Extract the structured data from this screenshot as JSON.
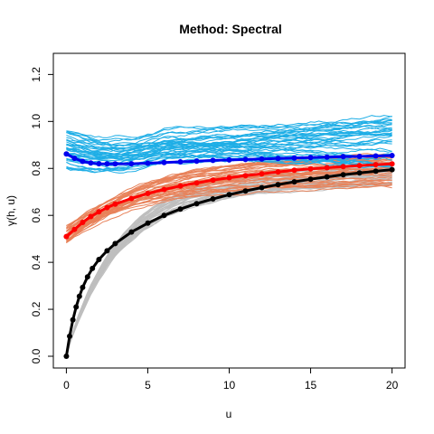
{
  "chart_data": {
    "type": "line",
    "title": "Method: Spectral",
    "xlabel": "u",
    "ylabel": "γ(h, u)",
    "xlim": [
      -0.8,
      20.8
    ],
    "ylim": [
      -0.05,
      1.29
    ],
    "x_ticks": [
      0,
      5,
      10,
      15,
      20
    ],
    "y_ticks": [
      0.0,
      0.2,
      0.4,
      0.6,
      0.8,
      1.0,
      1.2
    ],
    "grid": false,
    "legend": "none",
    "colors": {
      "blue_bundle": "#1EAEE6",
      "orange_bundle": "#E8825A",
      "gray_bundle": "#BEBEBE",
      "blue_mean": "#0000EE",
      "red_mean": "#FF0000",
      "black_mean": "#000000"
    },
    "bundles": [
      {
        "color_key": "blue_bundle",
        "count": 40,
        "start_range": [
          0.8,
          0.97
        ],
        "end_range": [
          0.8,
          1.02
        ],
        "dip": 0.04,
        "noise": 0.012
      },
      {
        "color_key": "orange_bundle",
        "count": 35,
        "start_range": [
          0.48,
          0.56
        ],
        "end_range": [
          0.72,
          0.86
        ],
        "noise": 0.008
      },
      {
        "color_key": "gray_bundle",
        "count": 35,
        "start_range": [
          0.0,
          0.0
        ],
        "end_range": [
          0.73,
          0.82
        ],
        "noise": 0.008
      }
    ],
    "series": [
      {
        "color_key": "blue_mean",
        "x": [
          0,
          0.5,
          1,
          1.5,
          2,
          2.5,
          3,
          4,
          5,
          6,
          7,
          8,
          9,
          10,
          11,
          12,
          13,
          14,
          15,
          16,
          17,
          18,
          19,
          20
        ],
        "y": [
          0.862,
          0.843,
          0.83,
          0.823,
          0.82,
          0.819,
          0.819,
          0.82,
          0.822,
          0.825,
          0.828,
          0.831,
          0.834,
          0.836,
          0.838,
          0.84,
          0.842,
          0.844,
          0.846,
          0.848,
          0.85,
          0.851,
          0.853,
          0.855
        ]
      },
      {
        "color_key": "red_mean",
        "x": [
          0,
          0.5,
          1,
          1.5,
          2,
          2.5,
          3,
          4,
          5,
          6,
          7,
          8,
          9,
          10,
          11,
          12,
          13,
          14,
          15,
          16,
          17,
          18,
          19,
          20
        ],
        "y": [
          0.51,
          0.54,
          0.57,
          0.595,
          0.615,
          0.633,
          0.648,
          0.672,
          0.693,
          0.71,
          0.725,
          0.738,
          0.75,
          0.76,
          0.769,
          0.777,
          0.785,
          0.792,
          0.798,
          0.803,
          0.808,
          0.812,
          0.816,
          0.819
        ]
      },
      {
        "color_key": "black_mean",
        "x": [
          0,
          0.2,
          0.4,
          0.6,
          0.8,
          1.0,
          1.3,
          1.6,
          2.0,
          2.5,
          3,
          4,
          5,
          6,
          7,
          8,
          9,
          10,
          11,
          12,
          13,
          14,
          15,
          16,
          17,
          18,
          19,
          20
        ],
        "y": [
          0.0,
          0.085,
          0.155,
          0.21,
          0.255,
          0.293,
          0.338,
          0.374,
          0.412,
          0.449,
          0.48,
          0.529,
          0.567,
          0.6,
          0.627,
          0.65,
          0.67,
          0.688,
          0.704,
          0.718,
          0.731,
          0.743,
          0.754,
          0.764,
          0.773,
          0.781,
          0.788,
          0.795
        ]
      }
    ]
  }
}
